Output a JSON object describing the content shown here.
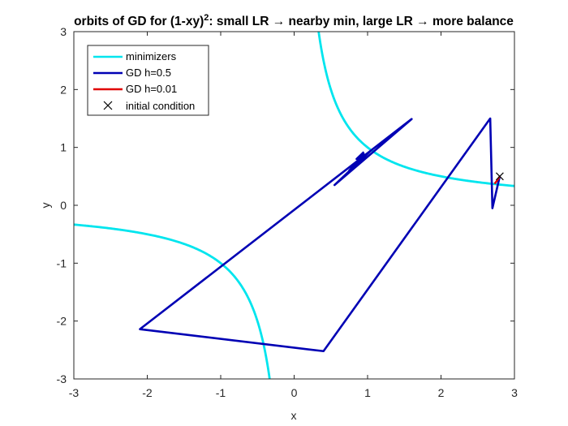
{
  "chart_data": {
    "type": "line",
    "title": {
      "pre": "orbits of GD for (1-xy)",
      "sup": "2",
      "post": ": small LR → nearby min, large LR → more balance"
    },
    "xlabel": "x",
    "ylabel": "y",
    "xlim": [
      -3,
      3
    ],
    "ylim": [
      -3,
      3
    ],
    "xticks": [
      -3,
      -2,
      -1,
      0,
      1,
      2,
      3
    ],
    "yticks": [
      -3,
      -2,
      -1,
      0,
      1,
      2,
      3
    ],
    "grid": false,
    "legend_position": "top-left",
    "series": [
      {
        "name": "minimizers",
        "color": "#00e5ee",
        "kind": "hyperbola-xy-equals-1"
      },
      {
        "name": "GD h=0.5",
        "color": "#0000b4",
        "points": [
          [
            2.8,
            0.5
          ],
          [
            2.7,
            -0.05
          ],
          [
            2.67,
            1.5
          ],
          [
            0.4,
            -2.52
          ],
          [
            -2.1,
            -2.14
          ],
          [
            1.6,
            1.49
          ],
          [
            0.55,
            0.35
          ],
          [
            1.05,
            0.95
          ],
          [
            0.75,
            0.6
          ],
          [
            0.95,
            0.88
          ],
          [
            0.85,
            0.8
          ],
          [
            0.95,
            0.92
          ]
        ]
      },
      {
        "name": "GD h=0.01",
        "color": "#e00000",
        "points": [
          [
            2.8,
            0.5
          ],
          [
            2.78,
            0.46
          ],
          [
            2.76,
            0.42
          ],
          [
            2.74,
            0.39
          ],
          [
            2.73,
            0.37
          ]
        ]
      },
      {
        "name": "initial condition",
        "color": "#000000",
        "marker": "x",
        "points": [
          [
            2.8,
            0.5
          ]
        ]
      }
    ]
  }
}
